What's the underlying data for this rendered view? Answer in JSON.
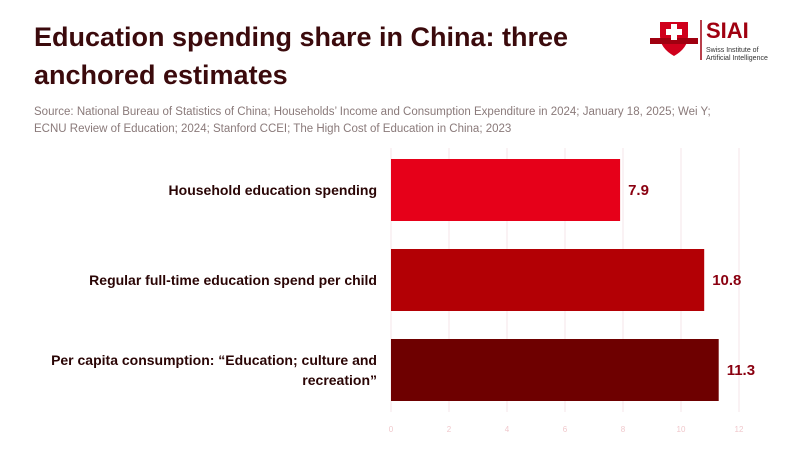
{
  "chart_data": {
    "type": "bar",
    "orientation": "horizontal",
    "title": "Education spending share in China: three anchored estimates",
    "subtitle": "Source: National Bureau of Statistics of China; Households’ Income and Consumption Expenditure in 2024; January 18, 2025; Wei Y; ECNU Review of Education; 2024; Stanford CCEI; The High Cost of Education in China; 2023",
    "logo": {
      "name": "SIAI",
      "line1": "Swiss Institute of",
      "line2": "Artificial Intelligence"
    },
    "categories": [
      "Household education spending",
      "Regular full-time education spend per child",
      "Per capita consumption: “Education; culture and recreation”"
    ],
    "values": [
      7.9,
      10.8,
      11.3
    ],
    "colors": [
      "#e60019",
      "#b30005",
      "#6e0000"
    ],
    "xlim": [
      0,
      12
    ],
    "xticks": [
      0,
      2,
      4,
      6,
      8,
      10,
      12
    ],
    "grid": true
  }
}
